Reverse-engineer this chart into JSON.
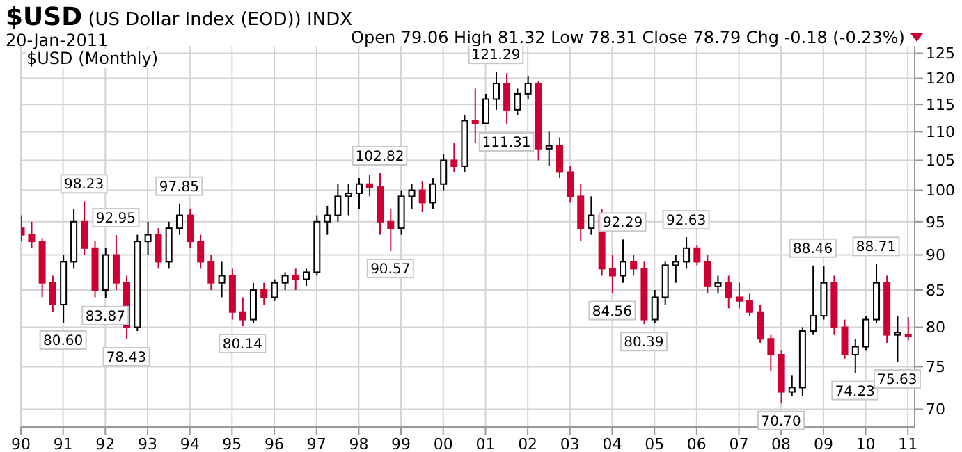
{
  "chart_data": {
    "type": "candlestick",
    "title": "$USD",
    "subtitle": "(US Dollar Index (EOD)) INDX",
    "annotations": [
      "20-Jan-2011",
      "Open 79.06 High 81.32 Low 78.31 Close 78.79 Chg -0.18 (-0.23%)",
      "$USD (Monthly)",
      {
        "text": "80.60",
        "x": "1991-01",
        "y": 80.6
      },
      {
        "text": "98.23",
        "x": "1991-07",
        "y": 98.23
      },
      {
        "text": "83.87",
        "x": "1992-01",
        "y": 83.87
      },
      {
        "text": "92.95",
        "x": "1992-04",
        "y": 92.95
      },
      {
        "text": "78.43",
        "x": "1992-07",
        "y": 78.43
      },
      {
        "text": "97.85",
        "x": "1993-10",
        "y": 97.85
      },
      {
        "text": "80.14",
        "x": "1995-04",
        "y": 80.14
      },
      {
        "text": "102.82",
        "x": "1998-07",
        "y": 102.82
      },
      {
        "text": "90.57",
        "x": "1998-10",
        "y": 90.57
      },
      {
        "text": "121.29",
        "x": "2001-04",
        "y": 121.29
      },
      {
        "text": "111.31",
        "x": "2001-07",
        "y": 111.31
      },
      {
        "text": "84.56",
        "x": "2004-01",
        "y": 84.56
      },
      {
        "text": "92.29",
        "x": "2004-04",
        "y": 92.29
      },
      {
        "text": "80.39",
        "x": "2004-10",
        "y": 80.39
      },
      {
        "text": "92.63",
        "x": "2005-10",
        "y": 92.63
      },
      {
        "text": "70.70",
        "x": "2008-01",
        "y": 70.7
      },
      {
        "text": "88.46",
        "x": "2008-10",
        "y": 88.46
      },
      {
        "text": "74.23",
        "x": "2009-10",
        "y": 74.23
      },
      {
        "text": "88.71",
        "x": "2010-04",
        "y": 88.71
      },
      {
        "text": "75.63",
        "x": "2010-10",
        "y": 75.63
      }
    ],
    "x": [
      "1990-01",
      "1990-04",
      "1990-07",
      "1990-10",
      "1991-01",
      "1991-04",
      "1991-07",
      "1991-10",
      "1992-01",
      "1992-04",
      "1992-07",
      "1992-10",
      "1993-01",
      "1993-04",
      "1993-07",
      "1993-10",
      "1994-01",
      "1994-04",
      "1994-07",
      "1994-10",
      "1995-01",
      "1995-04",
      "1995-07",
      "1995-10",
      "1996-01",
      "1996-04",
      "1996-07",
      "1996-10",
      "1997-01",
      "1997-04",
      "1997-07",
      "1997-10",
      "1998-01",
      "1998-04",
      "1998-07",
      "1998-10",
      "1999-01",
      "1999-04",
      "1999-07",
      "1999-10",
      "2000-01",
      "2000-04",
      "2000-07",
      "2000-10",
      "2001-01",
      "2001-04",
      "2001-07",
      "2001-10",
      "2002-01",
      "2002-04",
      "2002-07",
      "2002-10",
      "2003-01",
      "2003-04",
      "2003-07",
      "2003-10",
      "2004-01",
      "2004-04",
      "2004-07",
      "2004-10",
      "2005-01",
      "2005-04",
      "2005-07",
      "2005-10",
      "2006-01",
      "2006-04",
      "2006-07",
      "2006-10",
      "2007-01",
      "2007-04",
      "2007-07",
      "2007-10",
      "2008-01",
      "2008-04",
      "2008-07",
      "2008-10",
      "2009-01",
      "2009-04",
      "2009-07",
      "2009-10",
      "2010-01",
      "2010-04",
      "2010-07",
      "2010-10",
      "2011-01"
    ],
    "ohlc": [
      [
        94,
        96,
        92,
        93
      ],
      [
        93,
        95,
        91,
        92
      ],
      [
        92,
        92.5,
        84,
        86
      ],
      [
        86,
        87,
        82,
        83
      ],
      [
        83,
        90,
        80.6,
        89
      ],
      [
        89,
        97,
        88,
        95
      ],
      [
        95,
        98.23,
        90,
        91
      ],
      [
        91,
        92,
        84,
        85
      ],
      [
        85,
        91,
        83.87,
        90
      ],
      [
        90,
        92.95,
        85,
        86
      ],
      [
        86,
        87,
        78.43,
        80
      ],
      [
        80,
        93,
        79.5,
        92
      ],
      [
        92,
        95,
        90,
        93
      ],
      [
        93,
        94,
        88,
        89
      ],
      [
        89,
        95,
        88,
        94
      ],
      [
        94,
        97.85,
        93,
        96
      ],
      [
        96,
        97,
        91,
        92
      ],
      [
        92,
        93,
        88,
        89
      ],
      [
        89,
        90,
        85,
        86
      ],
      [
        86,
        89,
        84,
        87
      ],
      [
        87,
        88,
        81,
        82
      ],
      [
        82,
        84,
        80.14,
        81
      ],
      [
        81,
        86,
        80.5,
        85
      ],
      [
        85,
        86,
        83,
        84
      ],
      [
        84,
        86.5,
        83.5,
        86
      ],
      [
        86,
        87.5,
        85,
        87
      ],
      [
        87,
        88,
        85,
        86.5
      ],
      [
        86.5,
        88,
        85.5,
        87.5
      ],
      [
        87.5,
        96,
        87,
        95
      ],
      [
        95,
        97.5,
        93,
        96
      ],
      [
        96,
        101,
        95,
        99
      ],
      [
        99,
        101,
        96,
        99.5
      ],
      [
        99.5,
        102,
        97,
        101
      ],
      [
        101,
        102.5,
        99,
        100.5
      ],
      [
        100.5,
        102.82,
        93,
        95
      ],
      [
        95,
        97,
        90.57,
        94
      ],
      [
        94,
        100,
        93,
        99
      ],
      [
        99,
        101,
        97,
        100
      ],
      [
        100,
        101.5,
        96.5,
        98
      ],
      [
        98,
        102,
        97,
        101
      ],
      [
        101,
        106,
        100,
        105
      ],
      [
        105,
        108,
        103,
        104
      ],
      [
        104,
        113,
        103,
        112
      ],
      [
        112,
        118,
        108,
        111.5
      ],
      [
        111.5,
        117,
        111.4,
        116
      ],
      [
        116,
        121.29,
        114,
        119
      ],
      [
        119,
        121,
        111.31,
        114
      ],
      [
        114,
        118,
        113,
        117
      ],
      [
        117,
        120.5,
        116,
        119
      ],
      [
        119,
        119.5,
        105,
        107
      ],
      [
        107,
        110,
        104,
        107.5
      ],
      [
        107.5,
        109,
        102,
        103
      ],
      [
        103,
        104,
        98,
        99
      ],
      [
        99,
        101,
        92,
        94
      ],
      [
        94,
        99,
        93,
        96
      ],
      [
        96,
        97,
        87,
        88
      ],
      [
        88,
        90,
        84.56,
        87
      ],
      [
        87,
        92.29,
        86,
        89
      ],
      [
        89,
        90,
        87,
        88
      ],
      [
        88,
        89,
        80.39,
        81
      ],
      [
        81,
        85,
        80.5,
        84
      ],
      [
        84,
        89,
        83,
        88.5
      ],
      [
        88.5,
        90,
        86,
        89
      ],
      [
        89,
        92.63,
        88,
        91
      ],
      [
        91,
        91.5,
        88.5,
        89
      ],
      [
        89,
        90,
        84.5,
        85.5
      ],
      [
        85.5,
        87,
        84.5,
        86
      ],
      [
        86,
        87,
        82.5,
        84
      ],
      [
        84,
        86,
        82.5,
        83.5
      ],
      [
        83.5,
        84.5,
        81.5,
        82
      ],
      [
        82,
        83,
        78,
        78.5
      ],
      [
        78.5,
        79,
        74.5,
        76.5
      ],
      [
        76.5,
        77,
        70.7,
        72
      ],
      [
        72,
        74,
        71.5,
        72.5
      ],
      [
        72.5,
        80,
        71.5,
        79.5
      ],
      [
        79.5,
        88.46,
        79,
        81.5
      ],
      [
        81.5,
        88.4,
        81,
        86
      ],
      [
        86,
        87,
        79,
        80
      ],
      [
        80,
        81,
        76,
        76.5
      ],
      [
        76.5,
        78.5,
        74.23,
        77.5
      ],
      [
        77.5,
        81.5,
        77,
        81
      ],
      [
        81,
        88.71,
        80.5,
        86
      ],
      [
        86,
        87,
        78,
        79
      ],
      [
        79,
        81.5,
        75.63,
        79.3
      ],
      [
        79.06,
        81.32,
        78.31,
        78.79
      ]
    ],
    "colors": [
      "#cc0033",
      "#cc0033",
      "#cc0033",
      "#cc0033",
      "#000000",
      "#000000",
      "#cc0033",
      "#cc0033",
      "#000000",
      "#cc0033",
      "#cc0033",
      "#000000",
      "#000000",
      "#cc0033",
      "#000000",
      "#000000",
      "#cc0033",
      "#cc0033",
      "#cc0033",
      "#000000",
      "#cc0033",
      "#cc0033",
      "#000000",
      "#cc0033",
      "#000000",
      "#000000",
      "#cc0033",
      "#000000",
      "#000000",
      "#000000",
      "#000000",
      "#000000",
      "#000000",
      "#cc0033",
      "#cc0033",
      "#cc0033",
      "#000000",
      "#000000",
      "#cc0033",
      "#000000",
      "#000000",
      "#cc0033",
      "#000000",
      "#cc0033",
      "#000000",
      "#000000",
      "#cc0033",
      "#000000",
      "#000000",
      "#cc0033",
      "#000000",
      "#cc0033",
      "#cc0033",
      "#cc0033",
      "#000000",
      "#cc0033",
      "#cc0033",
      "#000000",
      "#cc0033",
      "#cc0033",
      "#000000",
      "#000000",
      "#000000",
      "#000000",
      "#cc0033",
      "#cc0033",
      "#000000",
      "#cc0033",
      "#cc0033",
      "#cc0033",
      "#cc0033",
      "#cc0033",
      "#cc0033",
      "#000000",
      "#000000",
      "#000000",
      "#000000",
      "#cc0033",
      "#cc0033",
      "#000000",
      "#000000",
      "#000000",
      "#cc0033",
      "#000000",
      "#cc0033"
    ],
    "xlim": [
      "1990-01",
      "2011-03"
    ],
    "xticks": [
      {
        "value": "1990-01",
        "label": "90"
      },
      {
        "value": "1991-01",
        "label": "91"
      },
      {
        "value": "1992-01",
        "label": "92"
      },
      {
        "value": "1993-01",
        "label": "93"
      },
      {
        "value": "1994-01",
        "label": "94"
      },
      {
        "value": "1995-01",
        "label": "95"
      },
      {
        "value": "1996-01",
        "label": "96"
      },
      {
        "value": "1997-01",
        "label": "97"
      },
      {
        "value": "1998-01",
        "label": "98"
      },
      {
        "value": "1999-01",
        "label": "99"
      },
      {
        "value": "2000-01",
        "label": "00"
      },
      {
        "value": "2001-01",
        "label": "01"
      },
      {
        "value": "2002-01",
        "label": "02"
      },
      {
        "value": "2003-01",
        "label": "03"
      },
      {
        "value": "2004-01",
        "label": "04"
      },
      {
        "value": "2005-01",
        "label": "05"
      },
      {
        "value": "2006-01",
        "label": "06"
      },
      {
        "value": "2007-01",
        "label": "07"
      },
      {
        "value": "2008-01",
        "label": "08"
      },
      {
        "value": "2009-01",
        "label": "09"
      },
      {
        "value": "2010-01",
        "label": "10"
      },
      {
        "value": "2011-01",
        "label": "11"
      }
    ],
    "ylim": [
      68,
      126.5
    ],
    "yticks": [
      70,
      75,
      80,
      85,
      90,
      95,
      100,
      105,
      110,
      115,
      120,
      125
    ],
    "log": "y",
    "grid": true
  }
}
